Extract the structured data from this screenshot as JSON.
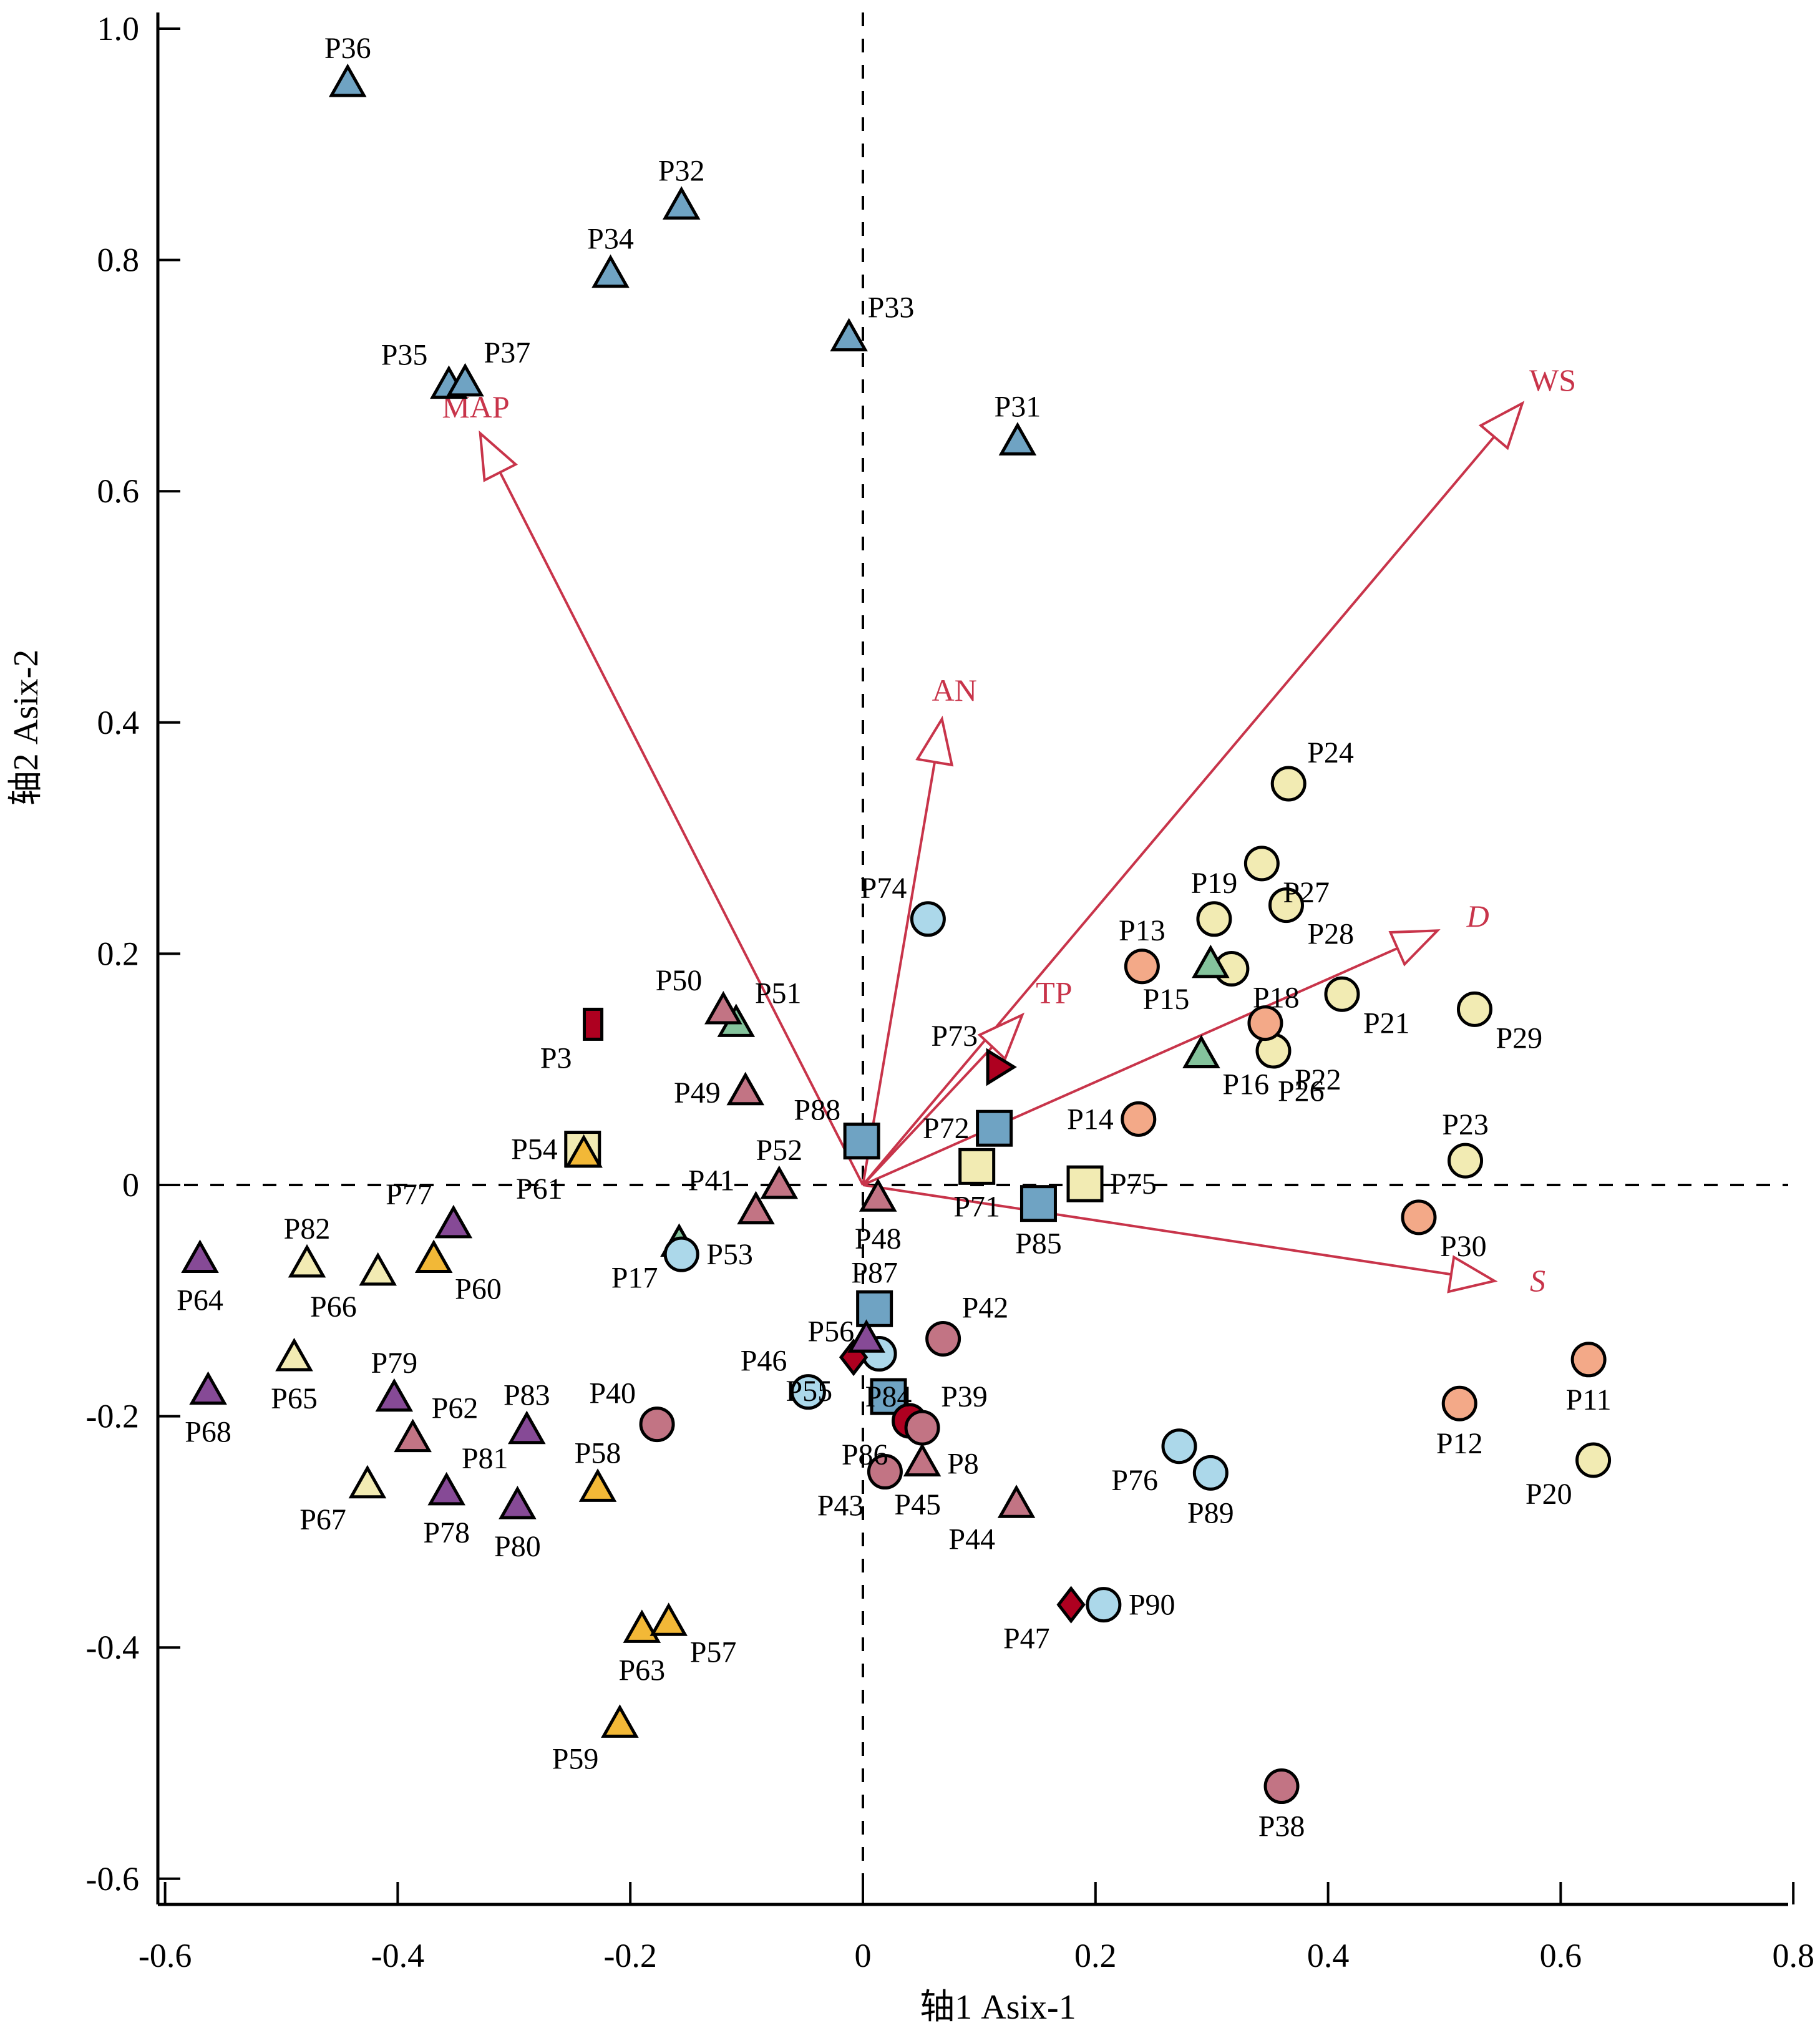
{
  "chart_data": {
    "type": "scatter",
    "subtype": "RDA biplot",
    "title": "",
    "xlabel": "轴1 Asix-1",
    "ylabel": "轴2 Asix-2",
    "xlim": [
      -0.62,
      0.8
    ],
    "ylim": [
      -0.62,
      1.02
    ],
    "xticks": [
      -0.6,
      -0.4,
      -0.2,
      0,
      0.2,
      0.4,
      0.6,
      0.8
    ],
    "xtick_labels": [
      "-0.6",
      "-0.4",
      "-0.2",
      "0",
      "0.2",
      "0.4",
      "0.6",
      "0.8"
    ],
    "yticks": [
      -0.6,
      -0.4,
      -0.2,
      0,
      0.2,
      0.4,
      0.6,
      0.8,
      1.0
    ],
    "ytick_labels": [
      "-0.6",
      "-0.4",
      "-0.2",
      "0",
      "0.2",
      "0.4",
      "0.6",
      "0.8",
      "1.0"
    ],
    "grid": false,
    "zero_lines": "dashed",
    "groups": {
      "blue-triangle": {
        "shape": "triangle",
        "color": "#6fa3c3"
      },
      "yellow-circle": {
        "shape": "circle",
        "color": "#f2ebb3"
      },
      "orange-circle": {
        "shape": "circle",
        "color": "#f3a988"
      },
      "green-triangle": {
        "shape": "triangle",
        "color": "#84c39c"
      },
      "lightblue-circle": {
        "shape": "circle",
        "color": "#acd8ea"
      },
      "blue-square": {
        "shape": "square",
        "color": "#6fa3c3"
      },
      "yellow-square": {
        "shape": "square",
        "color": "#f2ebb3"
      },
      "red-rect": {
        "shape": "rect",
        "color": "#ae0020"
      },
      "red-tri-right": {
        "shape": "triangle-right",
        "color": "#ae0020"
      },
      "red-diamond": {
        "shape": "diamond",
        "color": "#ae0020"
      },
      "red-circle": {
        "shape": "circle",
        "color": "#ae0020"
      },
      "mauve-triangle": {
        "shape": "triangle",
        "color": "#c27484"
      },
      "mauve-circle": {
        "shape": "circle",
        "color": "#c27484"
      },
      "purple-triangle": {
        "shape": "triangle",
        "color": "#864a96"
      },
      "paleyellow-triangle": {
        "shape": "triangle",
        "color": "#f2ebb3"
      },
      "orange-triangle": {
        "shape": "triangle",
        "color": "#f2b837"
      }
    },
    "points": [
      {
        "name": "P36",
        "group": "blue-triangle",
        "x": -0.443,
        "y": 0.952,
        "label_pos": "top"
      },
      {
        "name": "P32",
        "group": "blue-triangle",
        "x": -0.156,
        "y": 0.846,
        "label_pos": "top"
      },
      {
        "name": "P34",
        "group": "blue-triangle",
        "x": -0.217,
        "y": 0.787,
        "label_pos": "top"
      },
      {
        "name": "P33",
        "group": "blue-triangle",
        "x": -0.012,
        "y": 0.732,
        "label_pos": "top-right"
      },
      {
        "name": "P35",
        "group": "blue-triangle",
        "x": -0.356,
        "y": 0.691,
        "label_pos": "top-left"
      },
      {
        "name": "P37",
        "group": "blue-triangle",
        "x": -0.342,
        "y": 0.693,
        "label_pos": "top-right"
      },
      {
        "name": "P31",
        "group": "blue-triangle",
        "x": 0.133,
        "y": 0.642,
        "label_pos": "top"
      },
      {
        "name": "P24",
        "group": "yellow-circle",
        "x": 0.366,
        "y": 0.347,
        "label_pos": "top-right"
      },
      {
        "name": "P27",
        "group": "yellow-circle",
        "x": 0.343,
        "y": 0.278,
        "label_pos": "bottom-right"
      },
      {
        "name": "P19",
        "group": "yellow-circle",
        "x": 0.302,
        "y": 0.23,
        "label_pos": "top"
      },
      {
        "name": "P28",
        "group": "yellow-circle",
        "x": 0.364,
        "y": 0.242,
        "label_pos": "bottom-right"
      },
      {
        "name": "P18",
        "group": "yellow-circle",
        "x": 0.317,
        "y": 0.187,
        "label_pos": "bottom-right"
      },
      {
        "name": "P21",
        "group": "yellow-circle",
        "x": 0.412,
        "y": 0.165,
        "label_pos": "bottom-right"
      },
      {
        "name": "P22",
        "group": "yellow-circle",
        "x": 0.353,
        "y": 0.116,
        "label_pos": "bottom-right"
      },
      {
        "name": "P29",
        "group": "yellow-circle",
        "x": 0.526,
        "y": 0.152,
        "label_pos": "bottom-right"
      },
      {
        "name": "P23",
        "group": "yellow-circle",
        "x": 0.518,
        "y": 0.021,
        "label_pos": "top"
      },
      {
        "name": "P20",
        "group": "yellow-circle",
        "x": 0.628,
        "y": -0.238,
        "label_pos": "bottom-left"
      },
      {
        "name": "P13",
        "group": "orange-circle",
        "x": 0.24,
        "y": 0.189,
        "label_pos": "top"
      },
      {
        "name": "P26",
        "group": "orange-circle",
        "x": 0.346,
        "y": 0.14,
        "label_pos": "below-far"
      },
      {
        "name": "P14",
        "group": "orange-circle",
        "x": 0.237,
        "y": 0.057,
        "label_pos": "left"
      },
      {
        "name": "P30",
        "group": "orange-circle",
        "x": 0.478,
        "y": -0.028,
        "label_pos": "bottom-right"
      },
      {
        "name": "P11",
        "group": "orange-circle",
        "x": 0.624,
        "y": -0.151,
        "label_pos": "bottom"
      },
      {
        "name": "P12",
        "group": "orange-circle",
        "x": 0.513,
        "y": -0.189,
        "label_pos": "bottom"
      },
      {
        "name": "P15",
        "group": "green-triangle",
        "x": 0.299,
        "y": 0.19,
        "label_pos": "bottom-left"
      },
      {
        "name": "P16",
        "group": "green-triangle",
        "x": 0.291,
        "y": 0.112,
        "label_pos": "bottom-right"
      },
      {
        "name": "P51",
        "group": "green-triangle",
        "x": -0.109,
        "y": 0.139,
        "label_pos": "top-right"
      },
      {
        "name": "P17",
        "group": "green-triangle",
        "x": -0.158,
        "y": -0.051,
        "label_pos": "bottom-left"
      },
      {
        "name": "P74",
        "group": "lightblue-circle",
        "x": 0.056,
        "y": 0.23,
        "label_pos": "top-left"
      },
      {
        "name": "P53",
        "group": "lightblue-circle",
        "x": -0.156,
        "y": -0.06,
        "label_pos": "right"
      },
      {
        "name": "P56",
        "group": "lightblue-circle",
        "x": 0.014,
        "y": -0.146,
        "label_pos": "left-up"
      },
      {
        "name": "P46",
        "group": "lightblue-circle",
        "x": -0.047,
        "y": -0.179,
        "label_pos": "top-left"
      },
      {
        "name": "P76",
        "group": "lightblue-circle",
        "x": 0.272,
        "y": -0.226,
        "label_pos": "bottom-left"
      },
      {
        "name": "P89",
        "group": "lightblue-circle",
        "x": 0.299,
        "y": -0.249,
        "label_pos": "bottom"
      },
      {
        "name": "P90",
        "group": "lightblue-circle",
        "x": 0.207,
        "y": -0.363,
        "label_pos": "right"
      },
      {
        "name": "P88",
        "group": "blue-square",
        "x": -0.001,
        "y": 0.038,
        "label_pos": "top-left"
      },
      {
        "name": "P72",
        "group": "blue-square",
        "x": 0.113,
        "y": 0.049,
        "label_pos": "left"
      },
      {
        "name": "P85",
        "group": "blue-square",
        "x": 0.151,
        "y": -0.016,
        "label_pos": "bottom"
      },
      {
        "name": "P87",
        "group": "blue-square",
        "x": 0.01,
        "y": -0.107,
        "label_pos": "top"
      },
      {
        "name": "P84",
        "group": "blue-square",
        "x": 0.022,
        "y": -0.183,
        "label_pos": "overlap"
      },
      {
        "name": "P54",
        "group": "yellow-square",
        "x": -0.241,
        "y": 0.031,
        "label_pos": "left"
      },
      {
        "name": "P71",
        "group": "yellow-square",
        "x": 0.098,
        "y": 0.016,
        "label_pos": "bottom"
      },
      {
        "name": "P75",
        "group": "yellow-square",
        "x": 0.191,
        "y": 0.001,
        "label_pos": "right"
      },
      {
        "name": "P3",
        "group": "red-rect",
        "x": -0.232,
        "y": 0.139,
        "label_pos": "bottom-left"
      },
      {
        "name": "P73",
        "group": "red-tri-right",
        "x": 0.117,
        "y": 0.102,
        "label_pos": "top-left"
      },
      {
        "name": "P55",
        "group": "red-diamond",
        "x": -0.008,
        "y": -0.149,
        "label_pos": "bottom-left"
      },
      {
        "name": "P47",
        "group": "red-diamond",
        "x": 0.179,
        "y": -0.363,
        "label_pos": "bottom-left"
      },
      {
        "name": "P86",
        "group": "red-circle",
        "x": 0.04,
        "y": -0.204,
        "label_pos": "bottom-left"
      },
      {
        "name": "P50",
        "group": "mauve-triangle",
        "x": -0.12,
        "y": 0.15,
        "label_pos": "top-left"
      },
      {
        "name": "P49",
        "group": "mauve-triangle",
        "x": -0.101,
        "y": 0.08,
        "label_pos": "left"
      },
      {
        "name": "P52",
        "group": "mauve-triangle",
        "x": -0.072,
        "y": -0.001,
        "label_pos": "top"
      },
      {
        "name": "P41",
        "group": "mauve-triangle",
        "x": -0.092,
        "y": -0.023,
        "label_pos": "top-left"
      },
      {
        "name": "P48",
        "group": "mauve-triangle",
        "x": 0.013,
        "y": -0.012,
        "label_pos": "bottom"
      },
      {
        "name": "P8",
        "group": "mauve-triangle",
        "x": 0.051,
        "y": -0.241,
        "label_pos": "right"
      },
      {
        "name": "P44",
        "group": "mauve-triangle",
        "x": 0.132,
        "y": -0.277,
        "label_pos": "bottom-left"
      },
      {
        "name": "P62",
        "group": "mauve-triangle",
        "x": -0.387,
        "y": -0.22,
        "label_pos": "top-right"
      },
      {
        "name": "P42",
        "group": "mauve-circle",
        "x": 0.069,
        "y": -0.133,
        "label_pos": "top-right"
      },
      {
        "name": "P39",
        "group": "mauve-circle",
        "x": 0.051,
        "y": -0.21,
        "label_pos": "top-right"
      },
      {
        "name": "P43",
        "group": "mauve-circle",
        "x": 0.019,
        "y": -0.248,
        "label_pos": "bottom-left"
      },
      {
        "name": "P40",
        "group": "mauve-circle",
        "x": -0.177,
        "y": -0.207,
        "label_pos": "top-left"
      },
      {
        "name": "P38",
        "group": "mauve-circle",
        "x": 0.36,
        "y": -0.52,
        "label_pos": "bottom"
      },
      {
        "name": "P77",
        "group": "purple-triangle",
        "x": -0.352,
        "y": -0.035,
        "label_pos": "top-left"
      },
      {
        "name": "P64",
        "group": "purple-triangle",
        "x": -0.57,
        "y": -0.065,
        "label_pos": "bottom"
      },
      {
        "name": "P68",
        "group": "purple-triangle",
        "x": -0.563,
        "y": -0.179,
        "label_pos": "bottom"
      },
      {
        "name": "P79",
        "group": "purple-triangle",
        "x": -0.403,
        "y": -0.185,
        "label_pos": "top"
      },
      {
        "name": "P83",
        "group": "purple-triangle",
        "x": -0.289,
        "y": -0.213,
        "label_pos": "top"
      },
      {
        "name": "P78",
        "group": "purple-triangle",
        "x": -0.358,
        "y": -0.266,
        "label_pos": "bottom"
      },
      {
        "name": "P80",
        "group": "purple-triangle",
        "x": -0.297,
        "y": -0.278,
        "label_pos": "bottom"
      },
      {
        "name": "P81",
        "group": "purple-triangle",
        "x": 0.003,
        "y": -0.134,
        "label_pos": "none"
      },
      {
        "name": "P82",
        "group": "paleyellow-triangle",
        "x": -0.478,
        "y": -0.069,
        "label_pos": "top"
      },
      {
        "name": "P66",
        "group": "paleyellow-triangle",
        "x": -0.417,
        "y": -0.076,
        "label_pos": "bottom-left"
      },
      {
        "name": "P65",
        "group": "paleyellow-triangle",
        "x": -0.489,
        "y": -0.15,
        "label_pos": "bottom"
      },
      {
        "name": "P67",
        "group": "paleyellow-triangle",
        "x": -0.426,
        "y": -0.26,
        "label_pos": "bottom-left"
      },
      {
        "name": "P61",
        "group": "orange-triangle",
        "x": -0.24,
        "y": 0.026,
        "label_pos": "bottom-left"
      },
      {
        "name": "P60",
        "group": "orange-triangle",
        "x": -0.369,
        "y": -0.065,
        "label_pos": "bottom-right"
      },
      {
        "name": "P58",
        "group": "orange-triangle",
        "x": -0.228,
        "y": -0.263,
        "label_pos": "top"
      },
      {
        "name": "P63",
        "group": "orange-triangle",
        "x": -0.19,
        "y": -0.385,
        "label_pos": "bottom"
      },
      {
        "name": "P57",
        "group": "orange-triangle",
        "x": -0.167,
        "y": -0.379,
        "label_pos": "bottom-right"
      },
      {
        "name": "P59",
        "group": "orange-triangle",
        "x": -0.209,
        "y": -0.467,
        "label_pos": "bottom-left"
      }
    ],
    "extra_labels": [
      {
        "text": "P45",
        "x": 0.047,
        "y": -0.285
      },
      {
        "text": "P81",
        "x": -0.325,
        "y": -0.245
      }
    ],
    "vectors": [
      {
        "name": "MAP",
        "x": -0.329,
        "y": 0.65,
        "italic": false
      },
      {
        "name": "AN",
        "x": 0.068,
        "y": 0.403,
        "italic": false
      },
      {
        "name": "WS",
        "x": 0.567,
        "y": 0.676,
        "italic": false
      },
      {
        "name": "D",
        "x": 0.494,
        "y": 0.22,
        "italic": true
      },
      {
        "name": "TP",
        "x": 0.137,
        "y": 0.147,
        "italic": false
      },
      {
        "name": "S",
        "x": 0.543,
        "y": -0.083,
        "italic": true
      }
    ],
    "vector_color": "#c8344a"
  }
}
